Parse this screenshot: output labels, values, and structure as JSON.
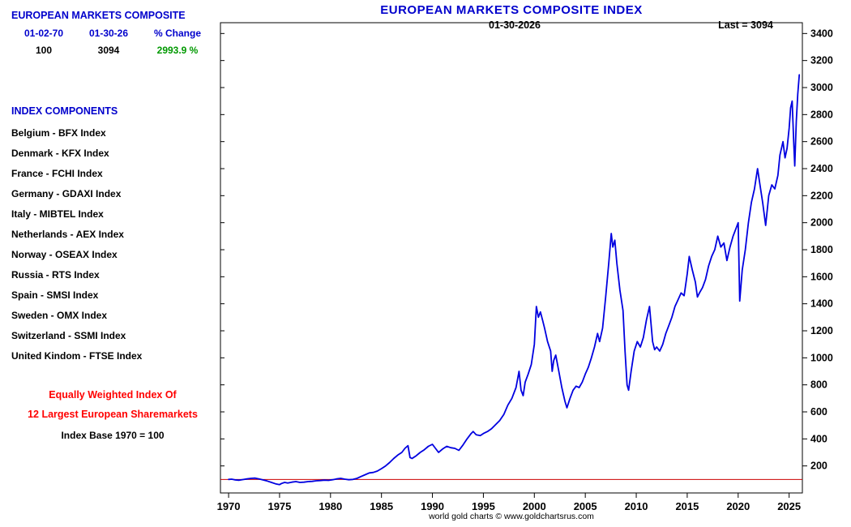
{
  "title": "EUROPEAN MARKETS COMPOSITE INDEX",
  "annotations": {
    "date_label": "01-30-2026",
    "last_label": "Last = 3094"
  },
  "left_panel": {
    "heading": "EUROPEAN MARKETS COMPOSITE",
    "col_headers": [
      "01-02-70",
      "01-30-26",
      "% Change"
    ],
    "col_values": [
      "100",
      "3094",
      "2993.9 %"
    ],
    "components_heading": "INDEX COMPONENTS",
    "components": [
      "Belgium - BFX Index",
      "Denmark - KFX Index",
      "France - FCHI Index",
      "Germany - GDAXI Index",
      "Italy - MIBTEL Index",
      "Netherlands - AEX Index",
      "Norway - OSEAX Index",
      "Russia - RTS Index",
      "Spain - SMSI Index",
      "Sweden - OMX Index",
      "Switzerland - SSMI Index",
      "United Kindom - FTSE Index"
    ],
    "note_red_line1": "Equally Weighted Index Of",
    "note_red_line2": "12 Largest European Sharemarkets",
    "note_base": "Index Base 1970 = 100"
  },
  "footer": "world gold charts © www.goldchartsrus.com",
  "colors": {
    "title_blue": "#0000cc",
    "series_blue": "#0000e0",
    "baseline_red": "#cc0000",
    "change_green": "#009900",
    "note_red": "#ff0000",
    "axis_black": "#000000"
  },
  "chart_data": {
    "type": "line",
    "title": "EUROPEAN MARKETS COMPOSITE INDEX",
    "xlabel": "",
    "ylabel": "",
    "x_range": [
      1969.2,
      2026.3
    ],
    "y_range": [
      0,
      3480
    ],
    "x_ticks": [
      1970,
      1975,
      1980,
      1985,
      1990,
      1995,
      2000,
      2005,
      2010,
      2015,
      2020,
      2025
    ],
    "y_ticks": [
      200,
      400,
      600,
      800,
      1000,
      1200,
      1400,
      1600,
      1800,
      2000,
      2200,
      2400,
      2600,
      2800,
      3000,
      3200,
      3400
    ],
    "grid": false,
    "legend": "none",
    "baseline": {
      "value": 100,
      "color": "#cc0000",
      "label": "Index Base 1970 = 100"
    },
    "start_value": 100,
    "last_value": 3094,
    "last_date": "01-30-2026",
    "percent_change": "2993.9 %",
    "series": [
      {
        "name": "European Markets Composite Index",
        "color": "#0000e0",
        "points": [
          [
            1970.0,
            100
          ],
          [
            1970.3,
            102
          ],
          [
            1970.6,
            97
          ],
          [
            1971.0,
            94
          ],
          [
            1971.4,
            99
          ],
          [
            1971.8,
            104
          ],
          [
            1972.2,
            108
          ],
          [
            1972.6,
            110
          ],
          [
            1973.0,
            104
          ],
          [
            1973.4,
            96
          ],
          [
            1973.8,
            88
          ],
          [
            1974.2,
            78
          ],
          [
            1974.6,
            68
          ],
          [
            1975.0,
            62
          ],
          [
            1975.2,
            70
          ],
          [
            1975.5,
            78
          ],
          [
            1975.8,
            74
          ],
          [
            1976.2,
            80
          ],
          [
            1976.6,
            84
          ],
          [
            1977.0,
            78
          ],
          [
            1977.4,
            80
          ],
          [
            1977.8,
            84
          ],
          [
            1978.2,
            86
          ],
          [
            1978.6,
            90
          ],
          [
            1979.0,
            92
          ],
          [
            1979.4,
            95
          ],
          [
            1979.8,
            93
          ],
          [
            1980.2,
            98
          ],
          [
            1980.6,
            104
          ],
          [
            1981.0,
            108
          ],
          [
            1981.4,
            102
          ],
          [
            1981.8,
            98
          ],
          [
            1982.2,
            100
          ],
          [
            1982.6,
            108
          ],
          [
            1983.0,
            122
          ],
          [
            1983.4,
            135
          ],
          [
            1983.8,
            148
          ],
          [
            1984.2,
            152
          ],
          [
            1984.6,
            162
          ],
          [
            1985.0,
            180
          ],
          [
            1985.4,
            200
          ],
          [
            1985.8,
            225
          ],
          [
            1986.2,
            255
          ],
          [
            1986.6,
            280
          ],
          [
            1987.0,
            300
          ],
          [
            1987.3,
            330
          ],
          [
            1987.6,
            350
          ],
          [
            1987.8,
            262
          ],
          [
            1988.0,
            255
          ],
          [
            1988.4,
            275
          ],
          [
            1988.8,
            300
          ],
          [
            1989.2,
            320
          ],
          [
            1989.6,
            345
          ],
          [
            1990.0,
            360
          ],
          [
            1990.3,
            330
          ],
          [
            1990.6,
            300
          ],
          [
            1991.0,
            325
          ],
          [
            1991.4,
            345
          ],
          [
            1991.8,
            335
          ],
          [
            1992.2,
            330
          ],
          [
            1992.6,
            315
          ],
          [
            1993.0,
            355
          ],
          [
            1993.4,
            400
          ],
          [
            1993.8,
            440
          ],
          [
            1994.0,
            455
          ],
          [
            1994.3,
            430
          ],
          [
            1994.7,
            425
          ],
          [
            1995.0,
            440
          ],
          [
            1995.4,
            455
          ],
          [
            1995.8,
            475
          ],
          [
            1996.2,
            505
          ],
          [
            1996.6,
            535
          ],
          [
            1997.0,
            580
          ],
          [
            1997.4,
            650
          ],
          [
            1997.8,
            700
          ],
          [
            1998.2,
            780
          ],
          [
            1998.5,
            900
          ],
          [
            1998.7,
            760
          ],
          [
            1998.9,
            720
          ],
          [
            1999.1,
            820
          ],
          [
            1999.4,
            880
          ],
          [
            1999.7,
            950
          ],
          [
            2000.0,
            1100
          ],
          [
            2000.2,
            1380
          ],
          [
            2000.4,
            1300
          ],
          [
            2000.6,
            1340
          ],
          [
            2000.8,
            1280
          ],
          [
            2001.0,
            1220
          ],
          [
            2001.3,
            1120
          ],
          [
            2001.6,
            1050
          ],
          [
            2001.75,
            900
          ],
          [
            2001.9,
            980
          ],
          [
            2002.1,
            1020
          ],
          [
            2002.4,
            900
          ],
          [
            2002.7,
            780
          ],
          [
            2003.0,
            680
          ],
          [
            2003.2,
            630
          ],
          [
            2003.5,
            700
          ],
          [
            2003.8,
            760
          ],
          [
            2004.1,
            790
          ],
          [
            2004.4,
            780
          ],
          [
            2004.7,
            820
          ],
          [
            2005.0,
            880
          ],
          [
            2005.3,
            930
          ],
          [
            2005.6,
            1000
          ],
          [
            2005.9,
            1080
          ],
          [
            2006.2,
            1180
          ],
          [
            2006.4,
            1120
          ],
          [
            2006.7,
            1220
          ],
          [
            2007.0,
            1450
          ],
          [
            2007.3,
            1700
          ],
          [
            2007.55,
            1920
          ],
          [
            2007.7,
            1820
          ],
          [
            2007.9,
            1870
          ],
          [
            2008.1,
            1700
          ],
          [
            2008.4,
            1500
          ],
          [
            2008.7,
            1350
          ],
          [
            2008.9,
            1050
          ],
          [
            2009.1,
            800
          ],
          [
            2009.25,
            760
          ],
          [
            2009.5,
            900
          ],
          [
            2009.8,
            1050
          ],
          [
            2010.1,
            1120
          ],
          [
            2010.4,
            1080
          ],
          [
            2010.7,
            1150
          ],
          [
            2011.0,
            1280
          ],
          [
            2011.3,
            1380
          ],
          [
            2011.6,
            1120
          ],
          [
            2011.8,
            1060
          ],
          [
            2012.0,
            1080
          ],
          [
            2012.3,
            1050
          ],
          [
            2012.6,
            1100
          ],
          [
            2012.9,
            1180
          ],
          [
            2013.2,
            1240
          ],
          [
            2013.5,
            1300
          ],
          [
            2013.8,
            1380
          ],
          [
            2014.1,
            1430
          ],
          [
            2014.4,
            1480
          ],
          [
            2014.7,
            1460
          ],
          [
            2015.0,
            1620
          ],
          [
            2015.2,
            1750
          ],
          [
            2015.5,
            1650
          ],
          [
            2015.8,
            1560
          ],
          [
            2016.0,
            1450
          ],
          [
            2016.2,
            1480
          ],
          [
            2016.5,
            1520
          ],
          [
            2016.8,
            1580
          ],
          [
            2017.1,
            1680
          ],
          [
            2017.4,
            1750
          ],
          [
            2017.7,
            1800
          ],
          [
            2018.0,
            1900
          ],
          [
            2018.3,
            1820
          ],
          [
            2018.6,
            1850
          ],
          [
            2018.9,
            1720
          ],
          [
            2019.2,
            1820
          ],
          [
            2019.5,
            1900
          ],
          [
            2019.8,
            1960
          ],
          [
            2020.0,
            2000
          ],
          [
            2020.15,
            1420
          ],
          [
            2020.4,
            1650
          ],
          [
            2020.7,
            1800
          ],
          [
            2021.0,
            2000
          ],
          [
            2021.3,
            2150
          ],
          [
            2021.6,
            2250
          ],
          [
            2021.9,
            2400
          ],
          [
            2022.1,
            2300
          ],
          [
            2022.4,
            2150
          ],
          [
            2022.7,
            1980
          ],
          [
            2023.0,
            2200
          ],
          [
            2023.3,
            2280
          ],
          [
            2023.6,
            2250
          ],
          [
            2023.9,
            2350
          ],
          [
            2024.1,
            2500
          ],
          [
            2024.4,
            2600
          ],
          [
            2024.6,
            2480
          ],
          [
            2024.8,
            2550
          ],
          [
            2025.0,
            2700
          ],
          [
            2025.15,
            2850
          ],
          [
            2025.3,
            2900
          ],
          [
            2025.45,
            2600
          ],
          [
            2025.55,
            2420
          ],
          [
            2025.7,
            2750
          ],
          [
            2025.85,
            2950
          ],
          [
            2026.0,
            3094
          ]
        ]
      }
    ]
  }
}
